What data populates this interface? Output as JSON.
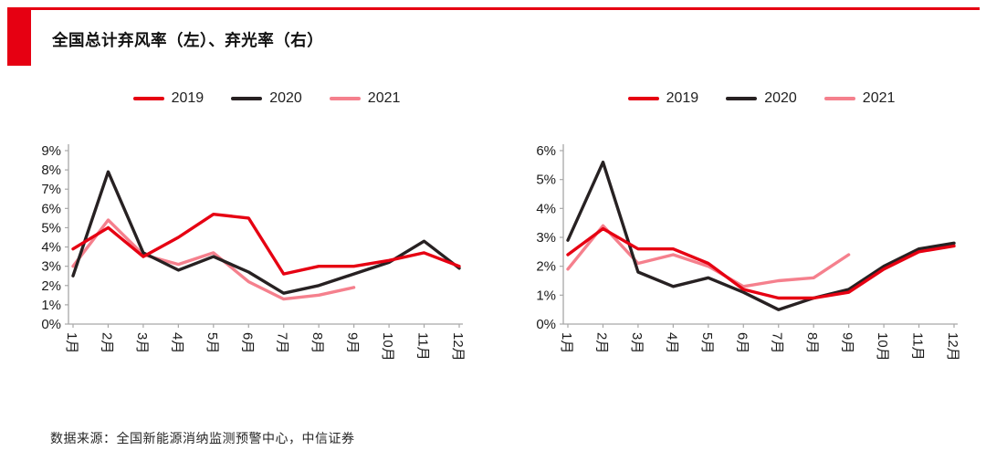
{
  "accent_color": "#e60012",
  "header": {
    "title": "全国总计弃风率（左）、弃光率（右）"
  },
  "legend": {
    "items": [
      {
        "label": "2019",
        "color": "#e60012"
      },
      {
        "label": "2020",
        "color": "#272122"
      },
      {
        "label": "2021",
        "color": "#f5808d"
      }
    ]
  },
  "chart_data": [
    {
      "name": "弃风率",
      "type": "line",
      "legend_position": "top",
      "grid": false,
      "categories": [
        "1月",
        "2月",
        "3月",
        "4月",
        "5月",
        "6月",
        "7月",
        "8月",
        "9月",
        "10月",
        "11月",
        "12月"
      ],
      "ylim": [
        0,
        9
      ],
      "ytick_step": 1,
      "ytick_labels": [
        "0%",
        "1%",
        "2%",
        "3%",
        "4%",
        "5%",
        "6%",
        "7%",
        "8%",
        "9%"
      ],
      "series": [
        {
          "name": "2019",
          "color": "#e60012",
          "values": [
            3.9,
            5.0,
            3.5,
            4.5,
            5.7,
            5.5,
            2.6,
            3.0,
            3.0,
            3.3,
            3.7,
            3.0
          ]
        },
        {
          "name": "2020",
          "color": "#272122",
          "values": [
            2.5,
            7.9,
            3.7,
            2.8,
            3.5,
            2.7,
            1.6,
            2.0,
            2.6,
            3.2,
            4.3,
            2.9
          ]
        },
        {
          "name": "2021",
          "color": "#f5808d",
          "values": [
            3.0,
            5.4,
            3.6,
            3.1,
            3.7,
            2.2,
            1.3,
            1.5,
            1.9,
            null,
            null,
            null
          ]
        }
      ]
    },
    {
      "name": "弃光率",
      "type": "line",
      "legend_position": "top",
      "grid": false,
      "categories": [
        "1月",
        "2月",
        "3月",
        "4月",
        "5月",
        "6月",
        "7月",
        "8月",
        "9月",
        "10月",
        "11月",
        "12月"
      ],
      "ylim": [
        0,
        6
      ],
      "ytick_step": 1,
      "ytick_labels": [
        "0%",
        "1%",
        "2%",
        "3%",
        "4%",
        "5%",
        "6%"
      ],
      "series": [
        {
          "name": "2019",
          "color": "#e60012",
          "values": [
            2.4,
            3.3,
            2.6,
            2.6,
            2.1,
            1.2,
            0.9,
            0.9,
            1.1,
            1.9,
            2.5,
            2.7
          ]
        },
        {
          "name": "2020",
          "color": "#272122",
          "values": [
            2.9,
            5.6,
            1.8,
            1.3,
            1.6,
            1.1,
            0.5,
            0.9,
            1.2,
            2.0,
            2.6,
            2.8
          ]
        },
        {
          "name": "2021",
          "color": "#f5808d",
          "values": [
            1.9,
            3.4,
            2.1,
            2.4,
            2.0,
            1.3,
            1.5,
            1.6,
            2.4,
            null,
            null,
            null
          ]
        }
      ]
    }
  ],
  "footer": {
    "source": "数据来源：全国新能源消纳监测预警中心，中信证券"
  }
}
